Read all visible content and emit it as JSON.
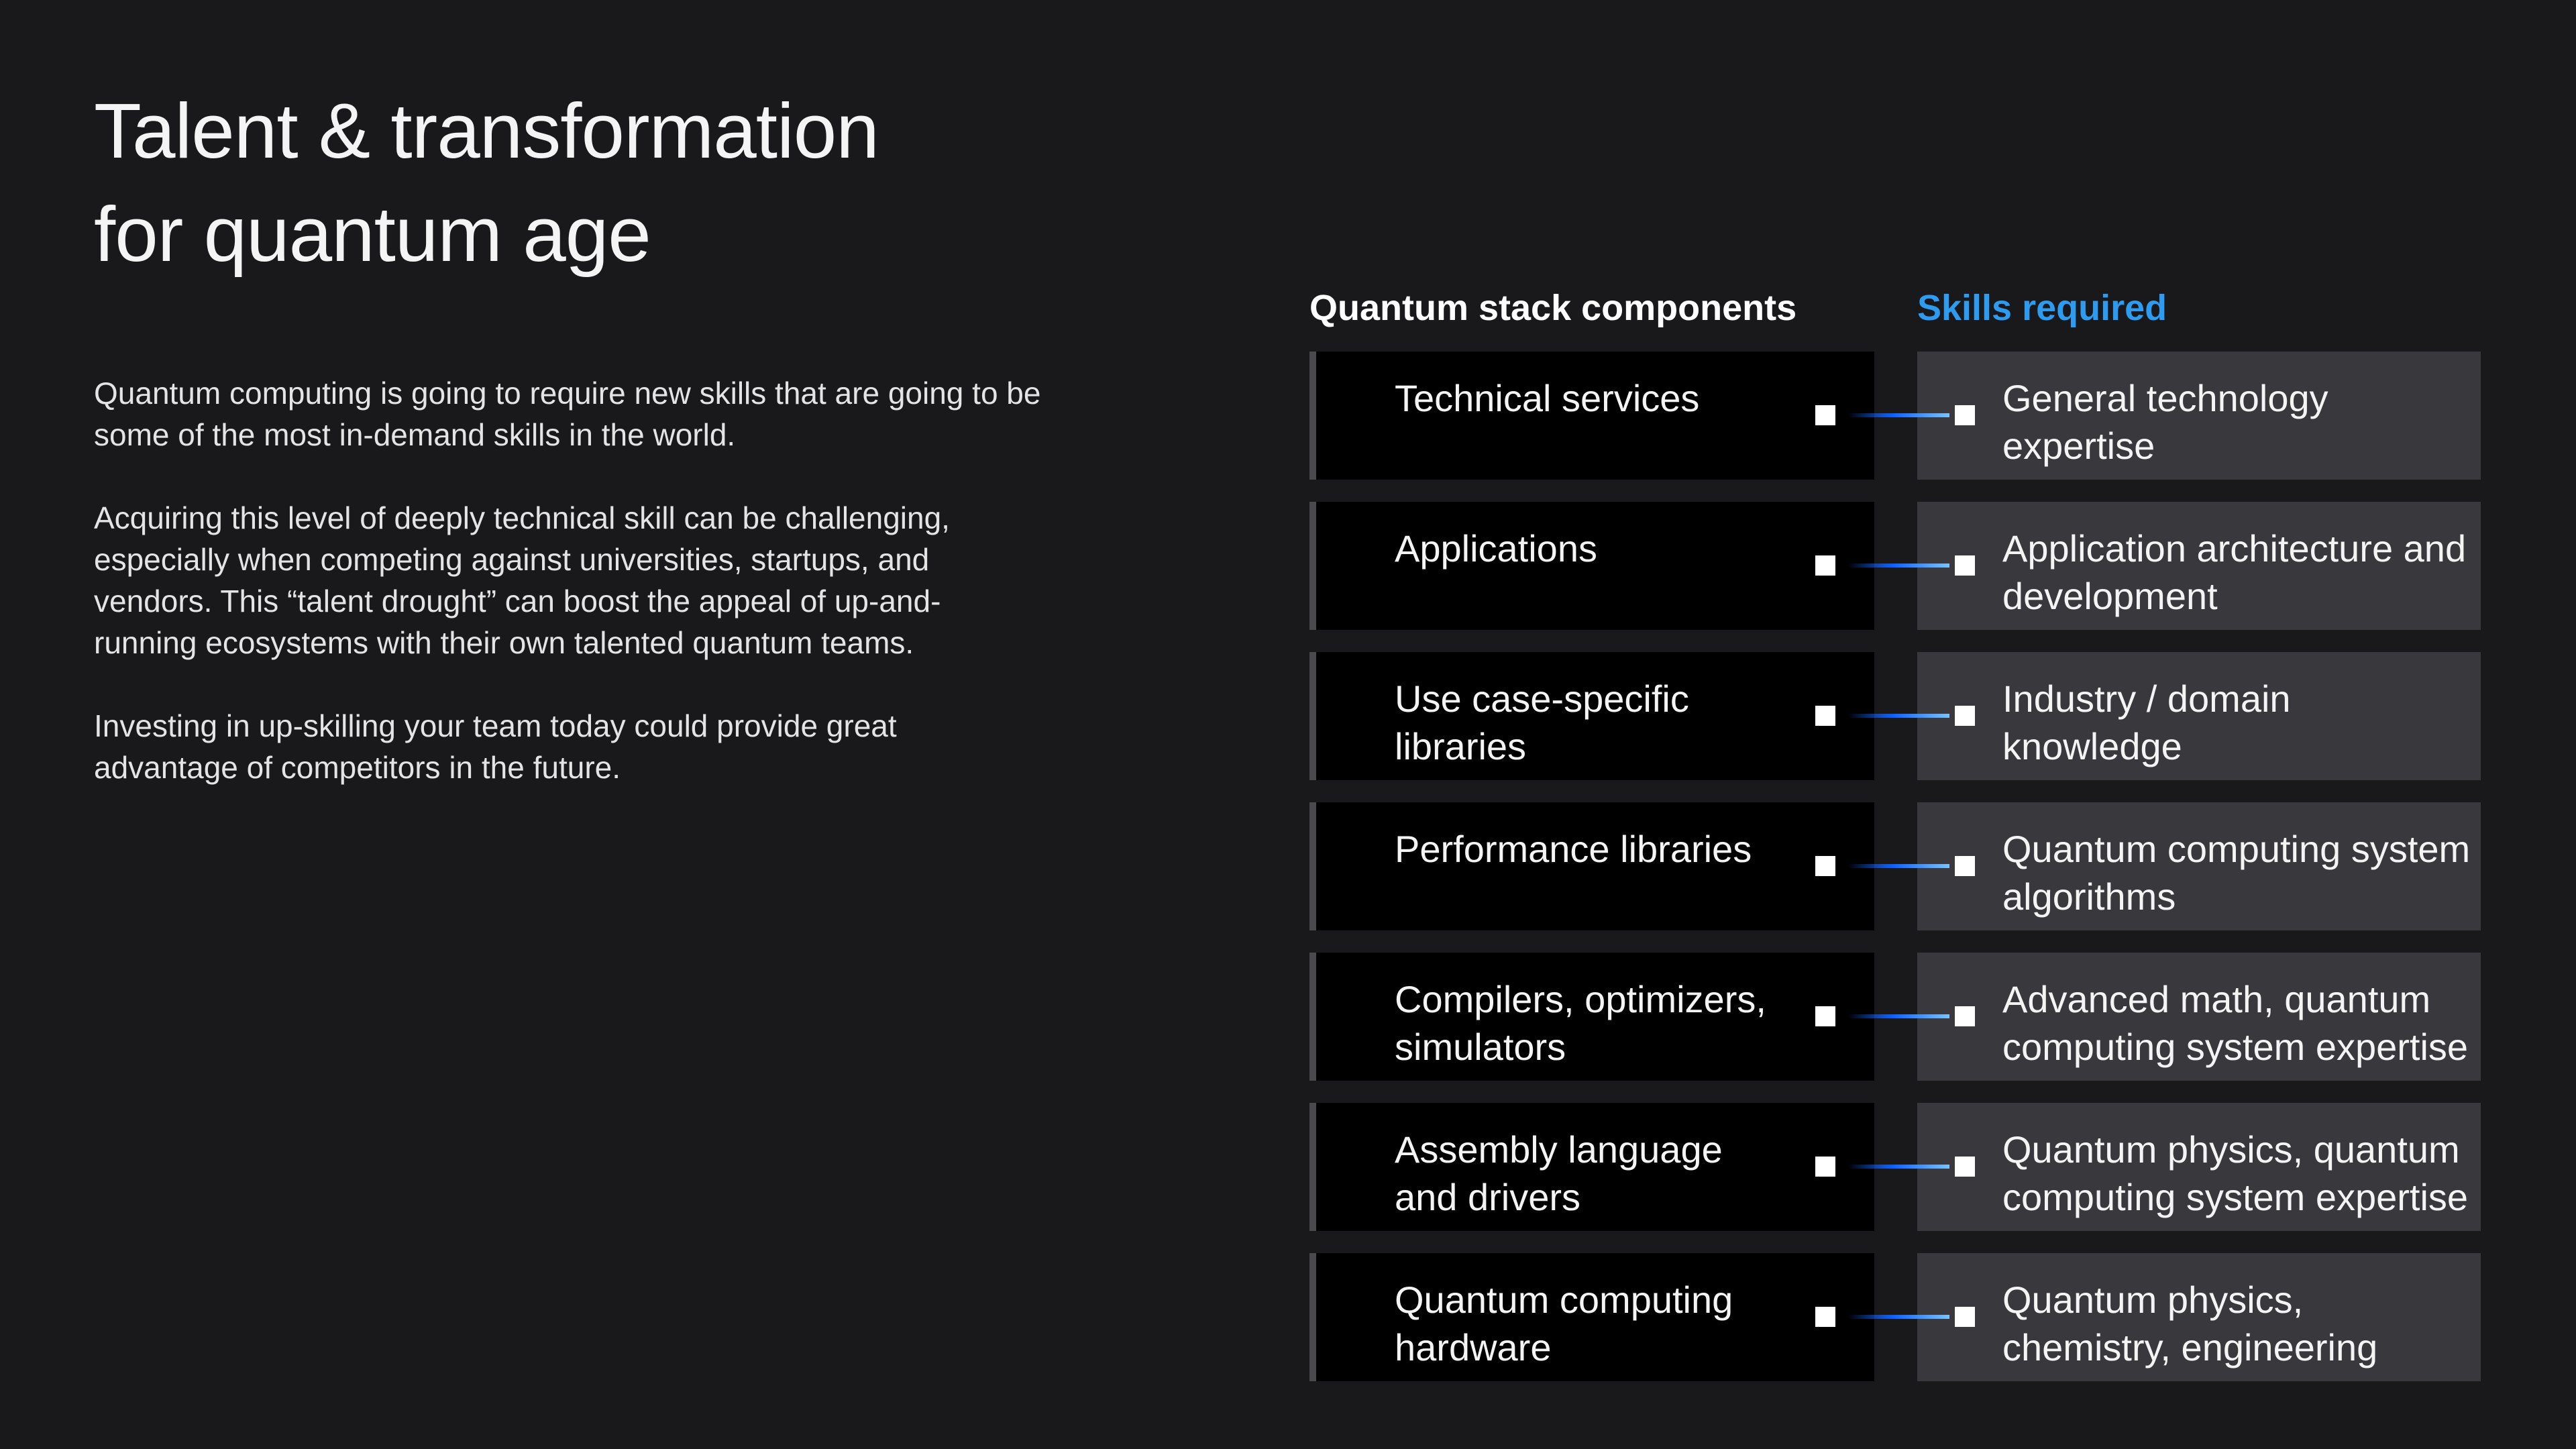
{
  "title": {
    "line1": "Talent & transformation",
    "line2": "for quantum age"
  },
  "intro": {
    "paragraphs": [
      "Quantum computing is going to require new skills that are going to be some of the most in-demand skills in the world.",
      "Acquiring this level of deeply technical skill can be challenging, especially when competing against universities, startups, and vendors. This “talent drought” can boost the appeal of up-and-running ecosystems with their own talented quantum teams.",
      "Investing in up-skilling your team today could provide great advantage of competitors in the future."
    ]
  },
  "headers": {
    "components": "Quantum stack components",
    "skills": "Skills required"
  },
  "colors": {
    "accent": "#2d9bf0",
    "background": "#19181b",
    "component_box": "#000000",
    "skill_box": "#39383c"
  },
  "rows": [
    {
      "component": "Technical services",
      "skill": "General technology expertise"
    },
    {
      "component": "Applications",
      "skill": "Application architecture and development"
    },
    {
      "component": "Use case-specific libraries",
      "skill": "Industry / domain knowledge"
    },
    {
      "component": "Performance libraries",
      "skill": "Quantum computing system algorithms"
    },
    {
      "component": "Compilers, optimizers, simulators",
      "skill": "Advanced math, quantum computing system expertise"
    },
    {
      "component": "Assembly language and drivers",
      "skill": "Quantum physics, quantum computing system expertise"
    },
    {
      "component": "Quantum computing hardware",
      "skill": "Quantum physics, chemistry, engineering"
    }
  ]
}
